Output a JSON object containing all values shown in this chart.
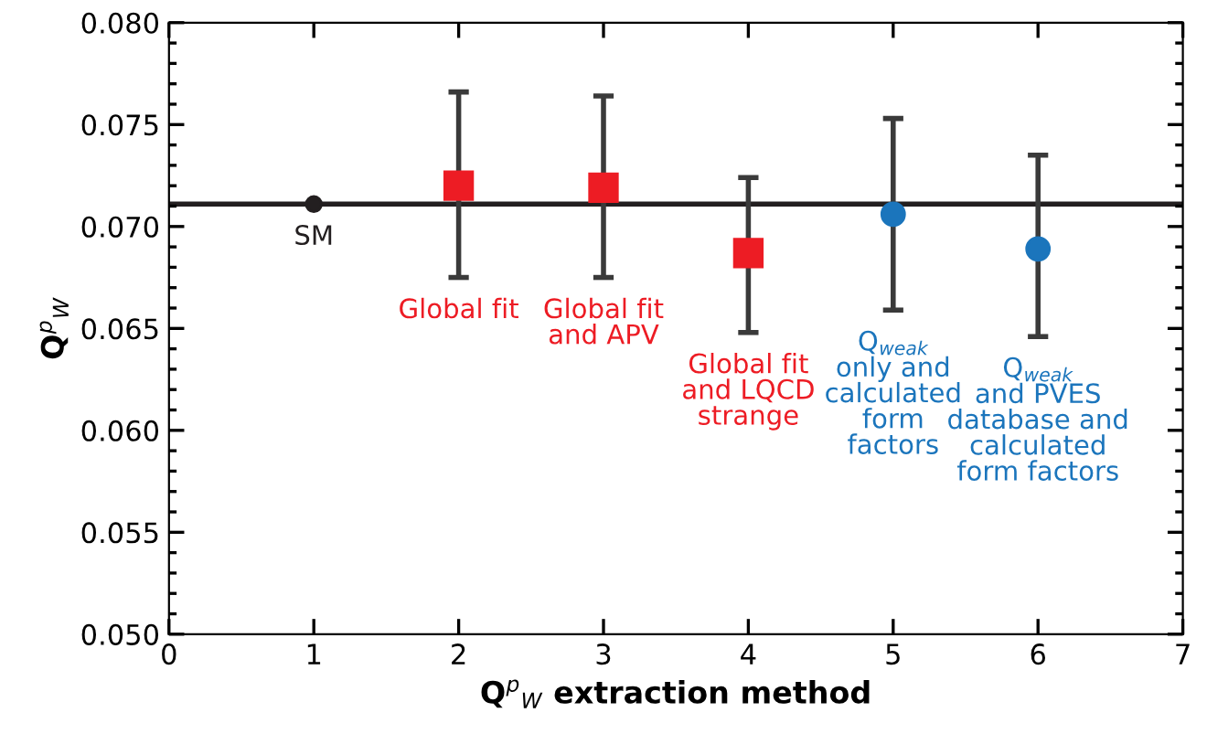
{
  "chart_data": {
    "type": "scatter",
    "xlabel": "Q$^{p}$$_{W}$ extraction method",
    "ylabel": "Q$^{p}$$_{W}$",
    "xlim": [
      0,
      7
    ],
    "xticks": [
      0,
      1,
      2,
      3,
      4,
      5,
      6,
      7
    ],
    "ylim": [
      0.05,
      0.08
    ],
    "yticks": [
      {
        "value": 0.05,
        "label": "0.050"
      },
      {
        "value": 0.055,
        "label": "0.055"
      },
      {
        "value": 0.06,
        "label": "0.060"
      },
      {
        "value": 0.065,
        "label": "0.065"
      },
      {
        "value": 0.07,
        "label": "0.070"
      },
      {
        "value": 0.075,
        "label": "0.075"
      },
      {
        "value": 0.08,
        "label": "0.080"
      }
    ],
    "grid": false,
    "legend": false,
    "ref_lines": [
      {
        "axis": "y",
        "value": 0.0711,
        "color": "#231f20",
        "line_style": "solid"
      }
    ],
    "series": [
      {
        "color": "#231f20",
        "marker": "circle",
        "x": [
          1
        ],
        "values": [
          0.0711
        ]
      },
      {
        "color": "#ed1c24",
        "marker": "square",
        "x": [
          2,
          3,
          4
        ],
        "values": [
          0.072,
          0.0719,
          0.0687
        ],
        "errors": [
          [
            0.0675,
            0.0766
          ],
          [
            0.0675,
            0.0764
          ],
          [
            0.0648,
            0.0724
          ]
        ]
      },
      {
        "color": "#1b75bc",
        "marker": "circle",
        "x": [
          5,
          6
        ],
        "values": [
          0.0706,
          0.0689
        ],
        "errors": [
          [
            0.0659,
            0.0753
          ],
          [
            0.0646,
            0.0735
          ]
        ]
      }
    ],
    "annotations": [
      {
        "text": "SM",
        "x": 1,
        "y": 0.0711
      },
      {
        "text": "Global fit",
        "x": 2,
        "y": 0.0675
      },
      {
        "text": "Global fit\nand APV",
        "x": 3,
        "y": 0.0675
      },
      {
        "text": "Global fit\nand LQCD\nstrange",
        "x": 4,
        "y": 0.0648
      },
      {
        "text": "Q$_{weak}$\nonly and\ncalculated\nform\nfactors",
        "x": 5,
        "y": 0.0659
      },
      {
        "text": "Q$_{weak}$\nand PVES\ndatabase and\ncalculated\nform factors",
        "x": 6,
        "y": 0.0646
      }
    ]
  }
}
